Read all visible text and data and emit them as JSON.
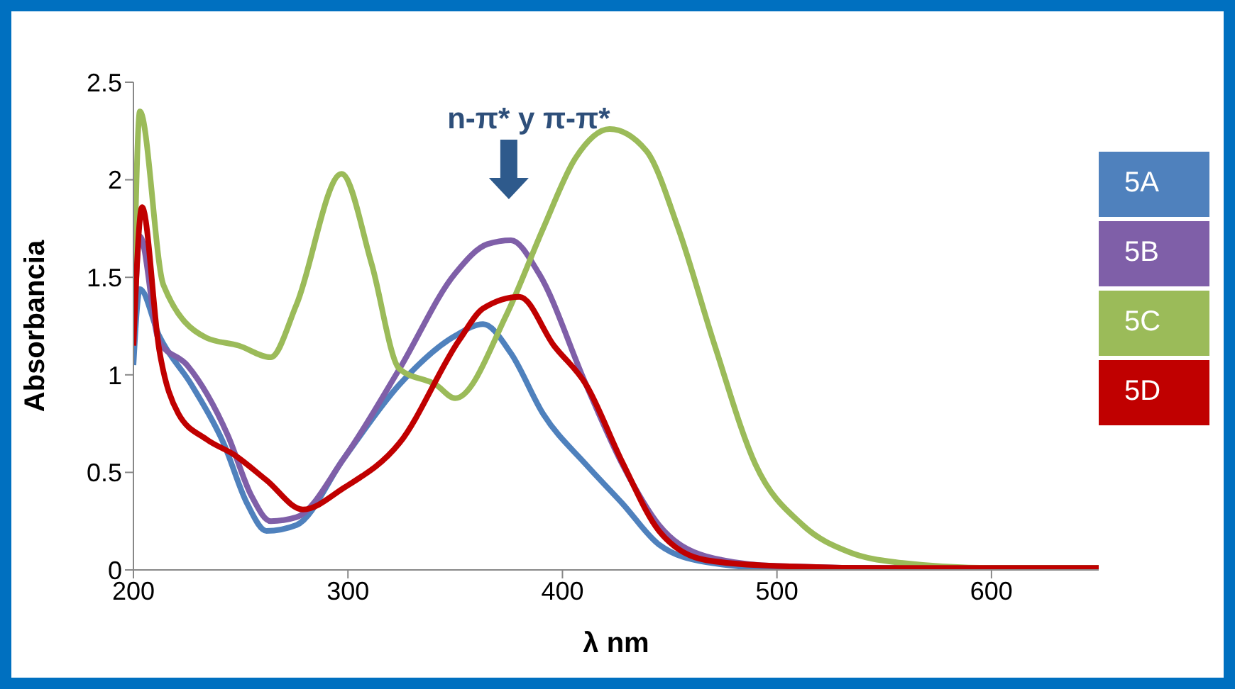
{
  "chart_data": {
    "type": "line",
    "xlabel": "λ nm",
    "ylabel": "Absorbancia",
    "xlim": [
      200,
      650
    ],
    "xticks": [
      200,
      300,
      400,
      500,
      600
    ],
    "ylim": [
      0,
      2.5
    ],
    "yticks": [
      0,
      0.5,
      1,
      1.5,
      2,
      2.5
    ],
    "grid": false,
    "legend": "right",
    "annotations": [
      "n-π* y π-π*"
    ],
    "series": [
      {
        "name": "5A",
        "color": "#4f81bd",
        "x": [
          200,
          203,
          212,
          227,
          242,
          253,
          262,
          276,
          298,
          324,
          350,
          363,
          376,
          391,
          411,
          428,
          445,
          467,
          500,
          550,
          650
        ],
        "values": [
          1.05,
          1.44,
          1.2,
          0.95,
          0.65,
          0.34,
          0.2,
          0.23,
          0.57,
          0.95,
          1.2,
          1.26,
          1.11,
          0.8,
          0.54,
          0.34,
          0.13,
          0.04,
          0.01,
          0.01,
          0.01
        ]
      },
      {
        "name": "5B",
        "color": "#7f5fa8",
        "x": [
          200,
          203,
          212,
          225,
          244,
          255,
          264,
          276,
          298,
          324,
          350,
          365,
          376,
          389,
          411,
          428,
          445,
          467,
          500,
          550,
          650
        ],
        "values": [
          1.15,
          1.71,
          1.17,
          1.05,
          0.69,
          0.38,
          0.25,
          0.27,
          0.57,
          1.03,
          1.52,
          1.67,
          1.69,
          1.52,
          0.95,
          0.54,
          0.23,
          0.07,
          0.02,
          0.01,
          0.01
        ]
      },
      {
        "name": "5C",
        "color": "#9bbb59",
        "x": [
          200,
          203,
          214,
          234,
          249,
          264,
          276,
          297,
          311,
          324,
          341,
          350,
          374,
          391,
          406,
          422,
          439,
          454,
          471,
          490,
          512,
          534,
          555,
          600,
          650
        ],
        "values": [
          1.3,
          2.35,
          1.46,
          1.19,
          1.15,
          1.09,
          1.36,
          2.03,
          1.57,
          1.03,
          0.95,
          0.88,
          1.31,
          1.75,
          2.11,
          2.26,
          2.15,
          1.75,
          1.15,
          0.54,
          0.23,
          0.09,
          0.04,
          0.01,
          0.01
        ]
      },
      {
        "name": "5D",
        "color": "#c00000",
        "x": [
          200,
          204,
          212,
          221,
          234,
          247,
          262,
          279,
          298,
          324,
          352,
          363,
          380,
          396,
          411,
          428,
          445,
          467,
          500,
          550,
          650
        ],
        "values": [
          1.15,
          1.86,
          1.13,
          0.8,
          0.67,
          0.59,
          0.46,
          0.31,
          0.42,
          0.65,
          1.18,
          1.34,
          1.4,
          1.15,
          0.95,
          0.55,
          0.2,
          0.05,
          0.02,
          0.01,
          0.01
        ]
      }
    ]
  }
}
